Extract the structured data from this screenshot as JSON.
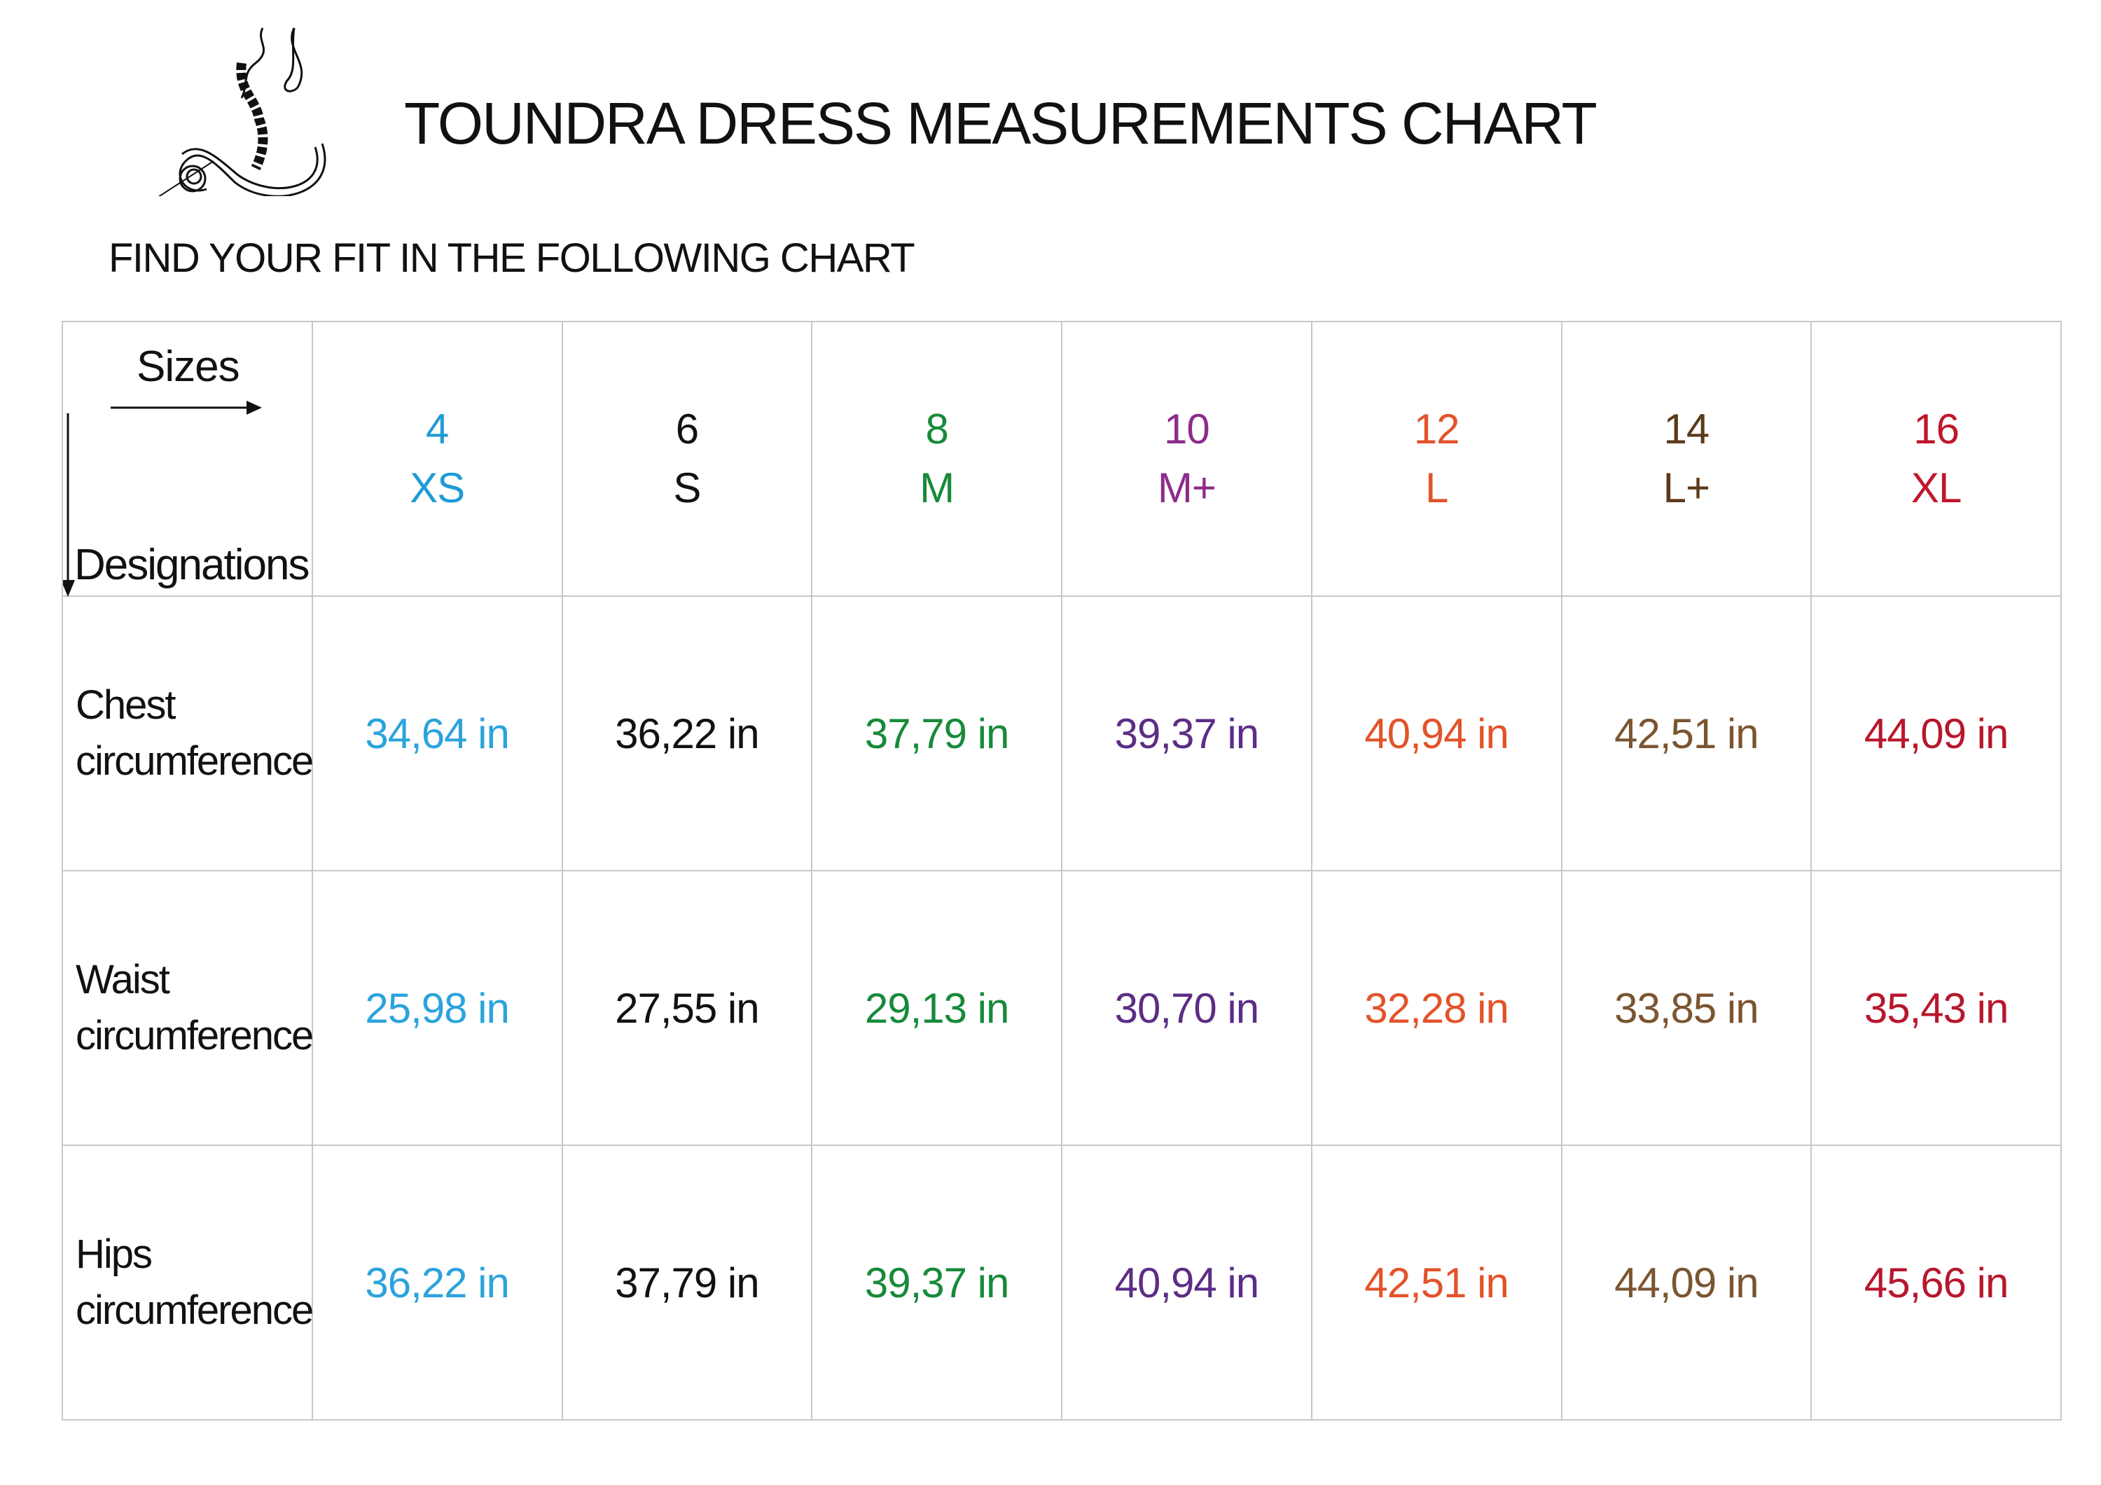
{
  "header": {
    "title": "TOUNDRA DRESS MEASUREMENTS CHART",
    "subtitle": "FIND YOUR FIT IN THE FOLLOWING CHART",
    "logo_icon": "needle-and-thread-logo"
  },
  "table": {
    "corner": {
      "sizes_label": "Sizes",
      "designations_label": "Designations"
    },
    "sizes": [
      {
        "number": "4",
        "code": "XS",
        "color": "#1f9ad6"
      },
      {
        "number": "6",
        "code": "S",
        "color": "#111111"
      },
      {
        "number": "8",
        "code": "M",
        "color": "#178a3a"
      },
      {
        "number": "10",
        "code": "M+",
        "color": "#8e2b8c"
      },
      {
        "number": "12",
        "code": "L",
        "color": "#e2532a"
      },
      {
        "number": "14",
        "code": "L+",
        "color": "#5a3a1a"
      },
      {
        "number": "16",
        "code": "XL",
        "color": "#c0162c"
      }
    ],
    "value_colors": [
      "#2ba3dc",
      "#111111",
      "#178a3a",
      "#5c2d86",
      "#e2532a",
      "#7a5530",
      "#b8162c"
    ],
    "rows": [
      {
        "label_line1": "Chest",
        "label_line2": "circumference",
        "values": [
          "34,64 in",
          "36,22 in",
          "37,79 in",
          "39,37 in",
          "40,94 in",
          "42,51 in",
          "44,09 in"
        ]
      },
      {
        "label_line1": "Waist",
        "label_line2": "circumference",
        "values": [
          "25,98 in",
          "27,55 in",
          "29,13 in",
          "30,70 in",
          "32,28 in",
          "33,85 in",
          "35,43 in"
        ]
      },
      {
        "label_line1": "Hips",
        "label_line2": "circumference",
        "values": [
          "36,22 in",
          "37,79 in",
          "39,37 in",
          "40,94 in",
          "42,51 in",
          "44,09 in",
          "45,66 in"
        ]
      }
    ]
  }
}
